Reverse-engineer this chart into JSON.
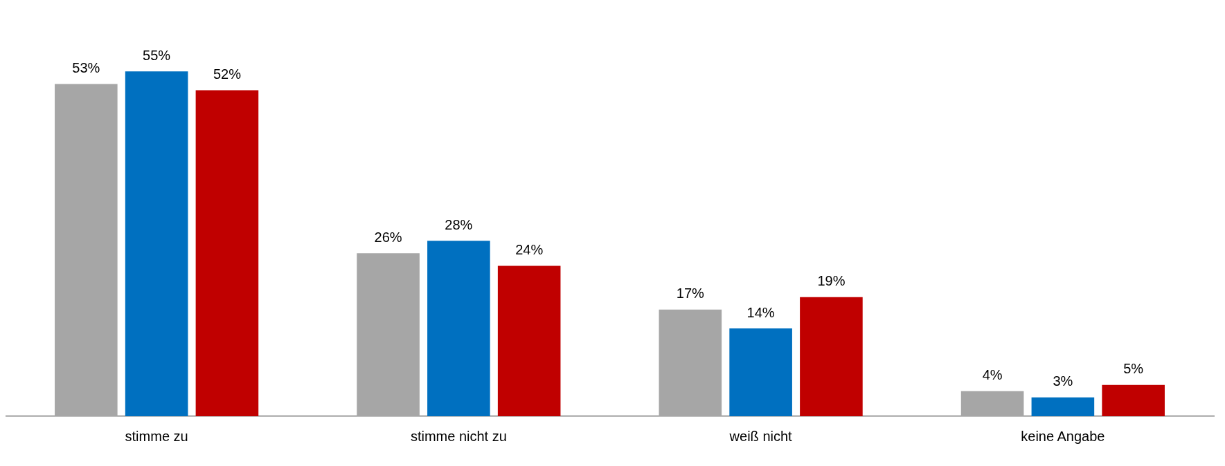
{
  "chart_data": {
    "type": "bar",
    "categories": [
      "stimme zu",
      "stimme nicht zu",
      "weiß nicht",
      "keine Angabe"
    ],
    "grid": false,
    "legend": false,
    "series": [
      {
        "color": "#a6a6a6",
        "values": [
          53,
          26,
          17,
          4
        ],
        "value_labels": [
          "53%",
          "26%",
          "17%",
          "4%"
        ]
      },
      {
        "color": "#0070c0",
        "values": [
          55,
          28,
          14,
          3
        ],
        "value_labels": [
          "55%",
          "28%",
          "14%",
          "3%"
        ]
      },
      {
        "color": "#c00000",
        "values": [
          52,
          24,
          19,
          5
        ],
        "value_labels": [
          "52%",
          "24%",
          "19%",
          "5%"
        ]
      }
    ]
  }
}
